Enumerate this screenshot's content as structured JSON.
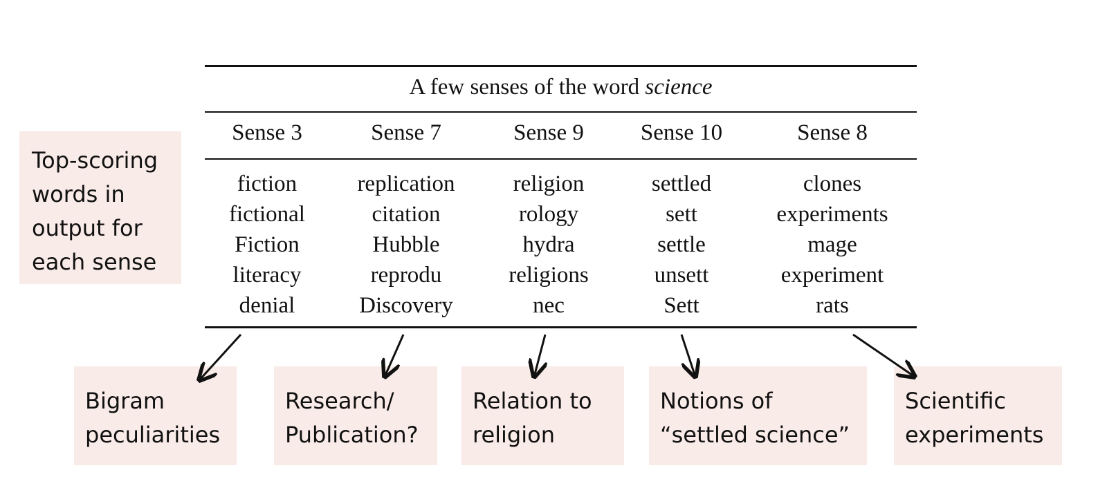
{
  "table": {
    "title_prefix": "A few senses of the word ",
    "title_italic": "science",
    "columns": [
      {
        "header": "Sense 3",
        "words": [
          "fiction",
          "fictional",
          "Fiction",
          "literacy",
          "denial"
        ]
      },
      {
        "header": "Sense 7",
        "words": [
          "replication",
          "citation",
          "Hubble",
          "reprodu",
          "Discovery"
        ]
      },
      {
        "header": "Sense 9",
        "words": [
          "religion",
          "rology",
          "hydra",
          "religions",
          "nec"
        ]
      },
      {
        "header": "Sense 10",
        "words": [
          "settled",
          "sett",
          "settle",
          "unsett",
          "Sett"
        ]
      },
      {
        "header": "Sense 8",
        "words": [
          "clones",
          "experiments",
          "mage",
          "experiment",
          "rats"
        ]
      }
    ]
  },
  "side_label": [
    "Top-scoring",
    "words in",
    "output for",
    "each sense"
  ],
  "interpretations": [
    [
      "Bigram",
      "peculiarities"
    ],
    [
      "Research/",
      "Publication?"
    ],
    [
      "Relation to",
      "religion"
    ],
    [
      "Notions of",
      "“settled science”"
    ],
    [
      "Scientific",
      "experiments"
    ]
  ],
  "colors": {
    "box_fill": "#f9ebe7",
    "ink": "#111111"
  }
}
